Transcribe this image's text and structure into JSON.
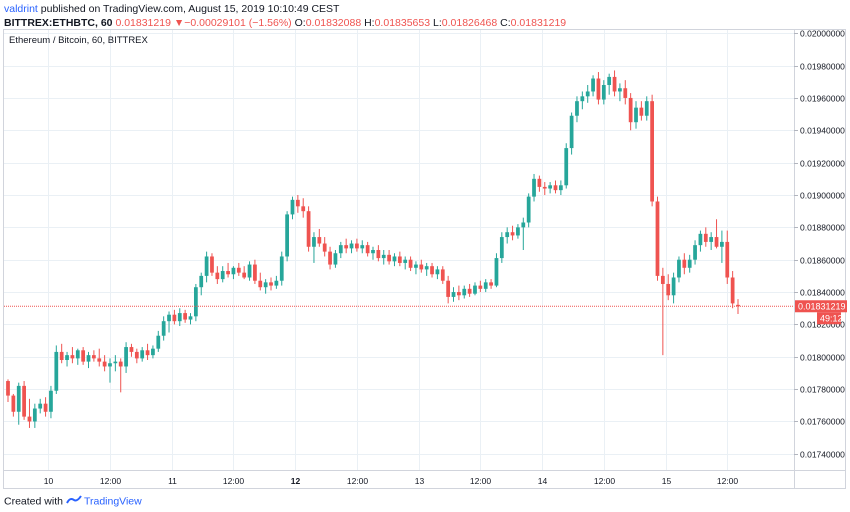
{
  "header": {
    "username": "valdrint",
    "published_text": " published on TradingView.com, August 15, 2019 10:10:49 CEST",
    "symbol": "BITTREX:ETHBTC, 60",
    "last_price": "0.01831219",
    "change_arrow": "▼",
    "change": "−0.00029101 (−1.56%)",
    "ohlc": [
      {
        "label": "O:",
        "value": "0.01832088"
      },
      {
        "label": "H:",
        "value": "0.01835653"
      },
      {
        "label": "L:",
        "value": "0.01826468"
      },
      {
        "label": "C:",
        "value": "0.01831219"
      }
    ]
  },
  "footer": {
    "created_with": "Created with",
    "brand": "TradingView"
  },
  "colors": {
    "up": "#26a69a",
    "down": "#ef5350",
    "grid": "#eaf0f5",
    "price_line": "#ef5350"
  },
  "chart_data": {
    "type": "candlestick",
    "title": "Ethereum / Bitcoin, 60, BITTREX",
    "ylim": [
      0.0173,
      0.02002
    ],
    "y_ticks": [
      "0.02000000",
      "0.01980000",
      "0.01960000",
      "0.01940000",
      "0.01920000",
      "0.01900000",
      "0.01880000",
      "0.01860000",
      "0.01840000",
      "0.01820000",
      "0.01800000",
      "0.01780000",
      "0.01760000",
      "0.01740000"
    ],
    "x_ticks": [
      {
        "label": "10",
        "bold": false
      },
      {
        "label": "12:00",
        "bold": false
      },
      {
        "label": "11",
        "bold": false
      },
      {
        "label": "12:00",
        "bold": false
      },
      {
        "label": "12",
        "bold": true
      },
      {
        "label": "12:00",
        "bold": false
      },
      {
        "label": "13",
        "bold": false
      },
      {
        "label": "12:00",
        "bold": false
      },
      {
        "label": "14",
        "bold": false
      },
      {
        "label": "12:00",
        "bold": false
      },
      {
        "label": "15",
        "bold": false
      },
      {
        "label": "12:00",
        "bold": false
      }
    ],
    "price_label": "0.01831219",
    "countdown_label": "49:12",
    "last_price_value": 0.01831219,
    "candles": [
      {
        "o": 0.01785,
        "h": 0.01786,
        "l": 0.01772,
        "c": 0.01776
      },
      {
        "o": 0.01776,
        "h": 0.01777,
        "l": 0.01763,
        "c": 0.01766
      },
      {
        "o": 0.01766,
        "h": 0.01784,
        "l": 0.01758,
        "c": 0.01782
      },
      {
        "o": 0.01782,
        "h": 0.01785,
        "l": 0.01761,
        "c": 0.01763
      },
      {
        "o": 0.01763,
        "h": 0.01774,
        "l": 0.01756,
        "c": 0.0176
      },
      {
        "o": 0.0176,
        "h": 0.01771,
        "l": 0.01756,
        "c": 0.01768
      },
      {
        "o": 0.01768,
        "h": 0.01774,
        "l": 0.01765,
        "c": 0.01771
      },
      {
        "o": 0.01771,
        "h": 0.01775,
        "l": 0.01763,
        "c": 0.01766
      },
      {
        "o": 0.01766,
        "h": 0.01782,
        "l": 0.01762,
        "c": 0.01779
      },
      {
        "o": 0.01779,
        "h": 0.01807,
        "l": 0.01777,
        "c": 0.01803
      },
      {
        "o": 0.01803,
        "h": 0.01808,
        "l": 0.01796,
        "c": 0.01798
      },
      {
        "o": 0.01798,
        "h": 0.01803,
        "l": 0.01794,
        "c": 0.01801
      },
      {
        "o": 0.01801,
        "h": 0.01806,
        "l": 0.01796,
        "c": 0.01799
      },
      {
        "o": 0.01799,
        "h": 0.01805,
        "l": 0.01795,
        "c": 0.01804
      },
      {
        "o": 0.01804,
        "h": 0.01806,
        "l": 0.01795,
        "c": 0.01797
      },
      {
        "o": 0.01797,
        "h": 0.01803,
        "l": 0.01793,
        "c": 0.01801
      },
      {
        "o": 0.01801,
        "h": 0.01804,
        "l": 0.01797,
        "c": 0.01799
      },
      {
        "o": 0.01799,
        "h": 0.01805,
        "l": 0.01794,
        "c": 0.01797
      },
      {
        "o": 0.01797,
        "h": 0.01801,
        "l": 0.01791,
        "c": 0.01794
      },
      {
        "o": 0.01794,
        "h": 0.01799,
        "l": 0.01784,
        "c": 0.01796
      },
      {
        "o": 0.01796,
        "h": 0.01801,
        "l": 0.01791,
        "c": 0.01797
      },
      {
        "o": 0.01797,
        "h": 0.01799,
        "l": 0.01778,
        "c": 0.01794
      },
      {
        "o": 0.01794,
        "h": 0.01809,
        "l": 0.0179,
        "c": 0.01806
      },
      {
        "o": 0.01806,
        "h": 0.01808,
        "l": 0.018,
        "c": 0.01803
      },
      {
        "o": 0.01803,
        "h": 0.01805,
        "l": 0.01796,
        "c": 0.01799
      },
      {
        "o": 0.01799,
        "h": 0.01806,
        "l": 0.01797,
        "c": 0.01804
      },
      {
        "o": 0.01804,
        "h": 0.01808,
        "l": 0.01798,
        "c": 0.01801
      },
      {
        "o": 0.01801,
        "h": 0.01807,
        "l": 0.01799,
        "c": 0.01805
      },
      {
        "o": 0.01805,
        "h": 0.01816,
        "l": 0.01803,
        "c": 0.01813
      },
      {
        "o": 0.01813,
        "h": 0.01825,
        "l": 0.0181,
        "c": 0.01822
      },
      {
        "o": 0.01822,
        "h": 0.01828,
        "l": 0.01815,
        "c": 0.01826
      },
      {
        "o": 0.01826,
        "h": 0.01829,
        "l": 0.0182,
        "c": 0.01822
      },
      {
        "o": 0.01822,
        "h": 0.0183,
        "l": 0.01819,
        "c": 0.01827
      },
      {
        "o": 0.01827,
        "h": 0.01829,
        "l": 0.01821,
        "c": 0.01823
      },
      {
        "o": 0.01823,
        "h": 0.01827,
        "l": 0.0182,
        "c": 0.01825
      },
      {
        "o": 0.01825,
        "h": 0.01845,
        "l": 0.01822,
        "c": 0.01843
      },
      {
        "o": 0.01843,
        "h": 0.01852,
        "l": 0.01838,
        "c": 0.0185
      },
      {
        "o": 0.0185,
        "h": 0.01865,
        "l": 0.01846,
        "c": 0.01862
      },
      {
        "o": 0.01862,
        "h": 0.01864,
        "l": 0.0185,
        "c": 0.01852
      },
      {
        "o": 0.01852,
        "h": 0.01856,
        "l": 0.01845,
        "c": 0.01848
      },
      {
        "o": 0.01848,
        "h": 0.01856,
        "l": 0.01846,
        "c": 0.01853
      },
      {
        "o": 0.01853,
        "h": 0.01858,
        "l": 0.01849,
        "c": 0.01851
      },
      {
        "o": 0.01851,
        "h": 0.01856,
        "l": 0.01848,
        "c": 0.01855
      },
      {
        "o": 0.01855,
        "h": 0.01858,
        "l": 0.0185,
        "c": 0.01852
      },
      {
        "o": 0.01852,
        "h": 0.01856,
        "l": 0.01848,
        "c": 0.01849
      },
      {
        "o": 0.01849,
        "h": 0.01859,
        "l": 0.01847,
        "c": 0.01857
      },
      {
        "o": 0.01857,
        "h": 0.0186,
        "l": 0.01845,
        "c": 0.01847
      },
      {
        "o": 0.01847,
        "h": 0.01852,
        "l": 0.01841,
        "c": 0.01843
      },
      {
        "o": 0.01843,
        "h": 0.01848,
        "l": 0.01839,
        "c": 0.01846
      },
      {
        "o": 0.01846,
        "h": 0.01849,
        "l": 0.01841,
        "c": 0.01844
      },
      {
        "o": 0.01844,
        "h": 0.0185,
        "l": 0.01842,
        "c": 0.01847
      },
      {
        "o": 0.01847,
        "h": 0.01865,
        "l": 0.01844,
        "c": 0.01862
      },
      {
        "o": 0.01862,
        "h": 0.0189,
        "l": 0.01859,
        "c": 0.01888
      },
      {
        "o": 0.01888,
        "h": 0.01899,
        "l": 0.01885,
        "c": 0.01897
      },
      {
        "o": 0.01897,
        "h": 0.019,
        "l": 0.01889,
        "c": 0.01893
      },
      {
        "o": 0.01893,
        "h": 0.01898,
        "l": 0.01886,
        "c": 0.0189
      },
      {
        "o": 0.0189,
        "h": 0.01893,
        "l": 0.01865,
        "c": 0.01868
      },
      {
        "o": 0.01868,
        "h": 0.01877,
        "l": 0.01858,
        "c": 0.01874
      },
      {
        "o": 0.01874,
        "h": 0.01879,
        "l": 0.01868,
        "c": 0.0187
      },
      {
        "o": 0.0187,
        "h": 0.01874,
        "l": 0.01862,
        "c": 0.01865
      },
      {
        "o": 0.01865,
        "h": 0.01868,
        "l": 0.01854,
        "c": 0.01857
      },
      {
        "o": 0.01857,
        "h": 0.01866,
        "l": 0.01855,
        "c": 0.01864
      },
      {
        "o": 0.01864,
        "h": 0.01871,
        "l": 0.01861,
        "c": 0.01869
      },
      {
        "o": 0.01869,
        "h": 0.01873,
        "l": 0.01864,
        "c": 0.01867
      },
      {
        "o": 0.01867,
        "h": 0.01872,
        "l": 0.01864,
        "c": 0.0187
      },
      {
        "o": 0.0187,
        "h": 0.01873,
        "l": 0.01865,
        "c": 0.01867
      },
      {
        "o": 0.01867,
        "h": 0.01872,
        "l": 0.01864,
        "c": 0.01869
      },
      {
        "o": 0.01869,
        "h": 0.01871,
        "l": 0.01862,
        "c": 0.01864
      },
      {
        "o": 0.01864,
        "h": 0.01868,
        "l": 0.0186,
        "c": 0.01866
      },
      {
        "o": 0.01866,
        "h": 0.01869,
        "l": 0.01859,
        "c": 0.01861
      },
      {
        "o": 0.01861,
        "h": 0.01866,
        "l": 0.01857,
        "c": 0.01863
      },
      {
        "o": 0.01863,
        "h": 0.01866,
        "l": 0.01857,
        "c": 0.01859
      },
      {
        "o": 0.01859,
        "h": 0.01864,
        "l": 0.01856,
        "c": 0.01862
      },
      {
        "o": 0.01862,
        "h": 0.01865,
        "l": 0.01856,
        "c": 0.01858
      },
      {
        "o": 0.01858,
        "h": 0.01862,
        "l": 0.01854,
        "c": 0.0186
      },
      {
        "o": 0.0186,
        "h": 0.01862,
        "l": 0.01853,
        "c": 0.01855
      },
      {
        "o": 0.01855,
        "h": 0.01859,
        "l": 0.01851,
        "c": 0.01857
      },
      {
        "o": 0.01857,
        "h": 0.0186,
        "l": 0.01852,
        "c": 0.01854
      },
      {
        "o": 0.01854,
        "h": 0.01858,
        "l": 0.0185,
        "c": 0.01856
      },
      {
        "o": 0.01856,
        "h": 0.01858,
        "l": 0.01849,
        "c": 0.01851
      },
      {
        "o": 0.01851,
        "h": 0.01856,
        "l": 0.01848,
        "c": 0.01854
      },
      {
        "o": 0.01854,
        "h": 0.01856,
        "l": 0.01845,
        "c": 0.01847
      },
      {
        "o": 0.01847,
        "h": 0.0185,
        "l": 0.01833,
        "c": 0.01837
      },
      {
        "o": 0.01837,
        "h": 0.01843,
        "l": 0.01834,
        "c": 0.0184
      },
      {
        "o": 0.0184,
        "h": 0.01844,
        "l": 0.01835,
        "c": 0.01838
      },
      {
        "o": 0.01838,
        "h": 0.01844,
        "l": 0.01836,
        "c": 0.01842
      },
      {
        "o": 0.01842,
        "h": 0.01845,
        "l": 0.01837,
        "c": 0.01839
      },
      {
        "o": 0.01839,
        "h": 0.01846,
        "l": 0.01838,
        "c": 0.01844
      },
      {
        "o": 0.01844,
        "h": 0.01847,
        "l": 0.0184,
        "c": 0.01842
      },
      {
        "o": 0.01842,
        "h": 0.01848,
        "l": 0.0184,
        "c": 0.01846
      },
      {
        "o": 0.01846,
        "h": 0.01848,
        "l": 0.01842,
        "c": 0.01844
      },
      {
        "o": 0.01844,
        "h": 0.01864,
        "l": 0.01843,
        "c": 0.01861
      },
      {
        "o": 0.01861,
        "h": 0.01877,
        "l": 0.01858,
        "c": 0.01874
      },
      {
        "o": 0.01874,
        "h": 0.0188,
        "l": 0.0187,
        "c": 0.01877
      },
      {
        "o": 0.01877,
        "h": 0.01881,
        "l": 0.01872,
        "c": 0.01875
      },
      {
        "o": 0.01875,
        "h": 0.01882,
        "l": 0.01873,
        "c": 0.0188
      },
      {
        "o": 0.0188,
        "h": 0.01886,
        "l": 0.01866,
        "c": 0.01883
      },
      {
        "o": 0.01883,
        "h": 0.01901,
        "l": 0.0188,
        "c": 0.01899
      },
      {
        "o": 0.01899,
        "h": 0.01913,
        "l": 0.01896,
        "c": 0.0191
      },
      {
        "o": 0.0191,
        "h": 0.01912,
        "l": 0.01902,
        "c": 0.01905
      },
      {
        "o": 0.01905,
        "h": 0.01908,
        "l": 0.019,
        "c": 0.01904
      },
      {
        "o": 0.01904,
        "h": 0.01908,
        "l": 0.01901,
        "c": 0.01906
      },
      {
        "o": 0.01906,
        "h": 0.01909,
        "l": 0.01901,
        "c": 0.01903
      },
      {
        "o": 0.01903,
        "h": 0.01909,
        "l": 0.019,
        "c": 0.01906
      },
      {
        "o": 0.01906,
        "h": 0.01932,
        "l": 0.01904,
        "c": 0.01929
      },
      {
        "o": 0.01929,
        "h": 0.01951,
        "l": 0.01925,
        "c": 0.01949
      },
      {
        "o": 0.01949,
        "h": 0.01961,
        "l": 0.01945,
        "c": 0.01958
      },
      {
        "o": 0.01958,
        "h": 0.01964,
        "l": 0.01953,
        "c": 0.01961
      },
      {
        "o": 0.01961,
        "h": 0.01968,
        "l": 0.01957,
        "c": 0.01964
      },
      {
        "o": 0.01964,
        "h": 0.01974,
        "l": 0.01961,
        "c": 0.01972
      },
      {
        "o": 0.01972,
        "h": 0.01976,
        "l": 0.01956,
        "c": 0.01959
      },
      {
        "o": 0.01959,
        "h": 0.01971,
        "l": 0.01956,
        "c": 0.01968
      },
      {
        "o": 0.01968,
        "h": 0.01975,
        "l": 0.01962,
        "c": 0.01973
      },
      {
        "o": 0.01973,
        "h": 0.01977,
        "l": 0.01961,
        "c": 0.01964
      },
      {
        "o": 0.01964,
        "h": 0.01969,
        "l": 0.01958,
        "c": 0.01966
      },
      {
        "o": 0.01966,
        "h": 0.01971,
        "l": 0.01956,
        "c": 0.0196
      },
      {
        "o": 0.0196,
        "h": 0.01963,
        "l": 0.0194,
        "c": 0.01945
      },
      {
        "o": 0.01945,
        "h": 0.01958,
        "l": 0.01941,
        "c": 0.01954
      },
      {
        "o": 0.01954,
        "h": 0.01958,
        "l": 0.01946,
        "c": 0.01949
      },
      {
        "o": 0.01949,
        "h": 0.01961,
        "l": 0.01946,
        "c": 0.01958
      },
      {
        "o": 0.01958,
        "h": 0.01962,
        "l": 0.01893,
        "c": 0.01896
      },
      {
        "o": 0.01896,
        "h": 0.01899,
        "l": 0.01847,
        "c": 0.0185
      },
      {
        "o": 0.0185,
        "h": 0.01855,
        "l": 0.01801,
        "c": 0.01845
      },
      {
        "o": 0.01845,
        "h": 0.01851,
        "l": 0.01835,
        "c": 0.01838
      },
      {
        "o": 0.01838,
        "h": 0.01852,
        "l": 0.01833,
        "c": 0.01849
      },
      {
        "o": 0.01849,
        "h": 0.01862,
        "l": 0.01846,
        "c": 0.0186
      },
      {
        "o": 0.0186,
        "h": 0.01864,
        "l": 0.01851,
        "c": 0.01855
      },
      {
        "o": 0.01855,
        "h": 0.01863,
        "l": 0.01852,
        "c": 0.0186
      },
      {
        "o": 0.0186,
        "h": 0.01872,
        "l": 0.01857,
        "c": 0.01869
      },
      {
        "o": 0.01869,
        "h": 0.01878,
        "l": 0.01865,
        "c": 0.01876
      },
      {
        "o": 0.01876,
        "h": 0.0188,
        "l": 0.01868,
        "c": 0.01871
      },
      {
        "o": 0.01871,
        "h": 0.01877,
        "l": 0.01866,
        "c": 0.01874
      },
      {
        "o": 0.01874,
        "h": 0.01885,
        "l": 0.01867,
        "c": 0.01868
      },
      {
        "o": 0.01868,
        "h": 0.01878,
        "l": 0.01858,
        "c": 0.01871
      },
      {
        "o": 0.01871,
        "h": 0.01878,
        "l": 0.01845,
        "c": 0.01849
      },
      {
        "o": 0.01849,
        "h": 0.01853,
        "l": 0.0183,
        "c": 0.01833
      },
      {
        "o": 0.01832088,
        "h": 0.01835653,
        "l": 0.01826468,
        "c": 0.01831219
      }
    ]
  }
}
